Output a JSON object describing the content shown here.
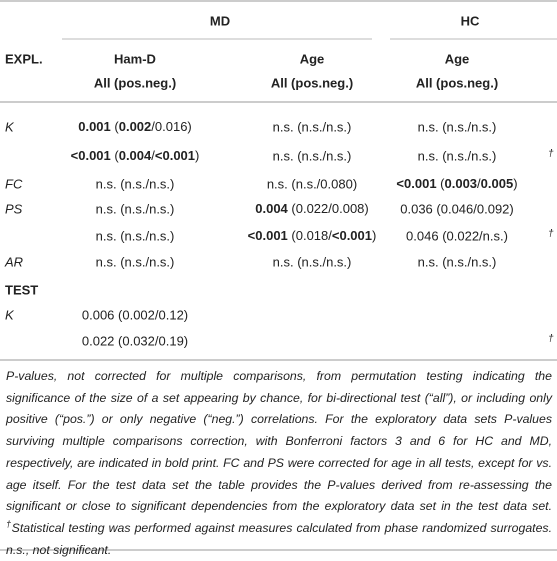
{
  "table": {
    "group_headers": [
      "MD",
      "HC"
    ],
    "row_header": "EXPL.",
    "column_headers": [
      [
        "Ham-D",
        "All (pos.neg.)"
      ],
      [
        "Age",
        "All (pos.neg.)"
      ],
      [
        "Age",
        "All (pos.neg.)"
      ]
    ],
    "rows": [
      {
        "label": "K",
        "cells": [
          [
            {
              "text": "0.001",
              "bold": true
            },
            {
              "text": " ("
            },
            {
              "text": "0.002",
              "bold": true
            },
            {
              "text": "/0.016)"
            }
          ],
          "n.s. (n.s./n.s.)",
          "n.s. (n.s./n.s.)"
        ]
      },
      {
        "cells": [
          [
            {
              "text": "<0.001",
              "bold": true
            },
            {
              "text": " ("
            },
            {
              "text": "0.004",
              "bold": true
            },
            {
              "text": "/"
            },
            {
              "text": "<0.001",
              "bold": true
            },
            {
              "text": ")"
            }
          ],
          "n.s. (n.s./n.s.)",
          "n.s. (n.s./n.s.)"
        ],
        "note": "†"
      },
      {
        "label": "FC",
        "cells": [
          "n.s. (n.s./n.s.)",
          "n.s. (n.s./0.080)",
          [
            {
              "text": "<0.001",
              "bold": true
            },
            {
              "text": " ("
            },
            {
              "text": "0.003",
              "bold": true
            },
            {
              "text": "/"
            },
            {
              "text": "0.005",
              "bold": true
            },
            {
              "text": ")"
            }
          ]
        ]
      },
      {
        "label": "PS",
        "cells": [
          "n.s. (n.s./n.s.)",
          [
            {
              "text": "0.004",
              "bold": true
            },
            {
              "text": " (0.022/0.008)"
            }
          ],
          "0.036 (0.046/0.092)"
        ]
      },
      {
        "cells": [
          "n.s. (n.s./n.s.)",
          [
            {
              "text": "<0.001",
              "bold": true
            },
            {
              "text": " (0.018/"
            },
            {
              "text": "<0.001",
              "bold": true
            },
            {
              "text": ")"
            }
          ],
          "0.046 (0.022/n.s.)"
        ],
        "note": "†"
      },
      {
        "label": "AR",
        "cells": [
          "n.s. (n.s./n.s.)",
          "n.s. (n.s./n.s.)",
          "n.s. (n.s./n.s.)"
        ]
      },
      {
        "section": "TEST"
      },
      {
        "label": "K",
        "cells": [
          "0.006 (0.002/0.12)"
        ]
      },
      {
        "cells": [
          "0.022 (0.032/0.19)"
        ],
        "note": "†"
      }
    ],
    "footnote": {
      "text": "P-values, not corrected for multiple comparisons, from permutation testing indicating the significance of the size of a set appearing by chance, for bi-directional test (“all”), or including only positive (“pos.”) or only negative (“neg.”) correlations. For the exploratory data sets P-values surviving multiple comparisons correction, with Bonferroni factors 3 and 6 for HC and MD, respectively, are indicated in bold print. FC and PS were corrected for age in all tests, except for vs. age itself. For the test data set the table provides the P-values derived from re-assessing the significant or close to significant dependencies from the exploratory data set in the test data set. ",
      "dagger": "†",
      "text2": "Statistical testing was performed against measures calculated from phase randomized surrogates. n.s., not significant."
    }
  }
}
